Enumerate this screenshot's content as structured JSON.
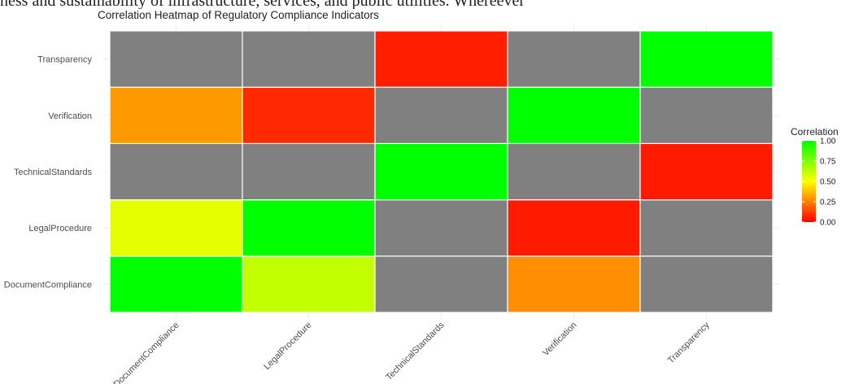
{
  "page_text": {
    "top_line": "ness and sustainability of infrastructure, services, and public utilities. Whereever"
  },
  "chart_data": {
    "type": "heatmap",
    "title": "Correlation Heatmap of Regulatory Compliance Indicators",
    "x_categories": [
      "DocumentCompliance",
      "LegalProcedure",
      "TechnicalStandards",
      "Verification",
      "Transparency"
    ],
    "y_categories": [
      "DocumentCompliance",
      "LegalProcedure",
      "TechnicalStandards",
      "Verification",
      "Transparency"
    ],
    "values": [
      [
        1.0,
        0.62,
        null,
        0.28,
        null
      ],
      [
        0.55,
        1.0,
        null,
        0.05,
        null
      ],
      [
        null,
        null,
        1.0,
        null,
        0.05
      ],
      [
        0.3,
        0.08,
        null,
        1.0,
        null
      ],
      [
        null,
        null,
        0.06,
        null,
        1.0
      ]
    ],
    "missing_color": "#808080",
    "legend": {
      "title": "Correlation",
      "ticks": [
        "0.00",
        "0.25",
        "0.50",
        "0.75",
        "1.00"
      ],
      "colors": [
        "#ff0000",
        "#ffff00",
        "#00ff00"
      ],
      "limits": [
        0,
        1
      ],
      "placement": "right"
    },
    "grid": true
  }
}
